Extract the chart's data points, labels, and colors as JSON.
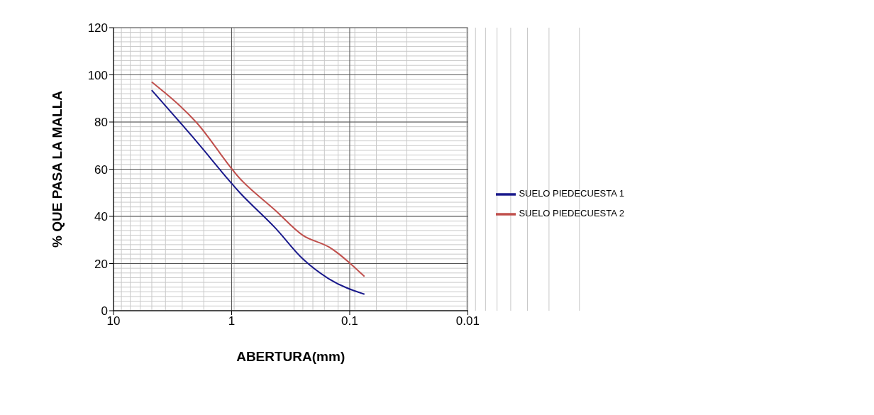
{
  "chart_data": {
    "type": "line",
    "xlabel": "ABERTURA(mm)",
    "ylabel": "% QUE PASA LA MALLA",
    "x": [
      4.75,
      2.0,
      0.85,
      0.425,
      0.25,
      0.15,
      0.075
    ],
    "series": [
      {
        "name": "SUELO PIEDECUESTA 1",
        "color": "#1a1a8c",
        "values": [
          93.5,
          72,
          50,
          35,
          22,
          13.5,
          7
        ]
      },
      {
        "name": "SUELO PIEDECUESTA 2",
        "color": "#c0504d",
        "values": [
          97,
          80,
          56,
          42.5,
          32,
          27,
          14.5
        ]
      }
    ],
    "log": "x",
    "xlim": [
      10,
      0.01
    ],
    "xticks": [
      10,
      1,
      0.1,
      0.01
    ],
    "ylim": [
      0,
      120
    ],
    "yticks": [
      0,
      20,
      40,
      60,
      80,
      100,
      120
    ],
    "grid": true,
    "legend": "right",
    "marker": "none",
    "line_style": "solid"
  }
}
